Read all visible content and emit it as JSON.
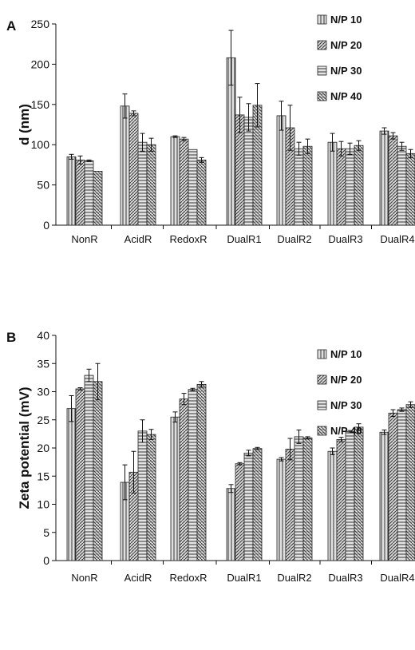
{
  "chart_data": [
    {
      "type": "bar",
      "panel_label": "A",
      "ylabel": "d (nm)",
      "ylim": [
        0,
        250
      ],
      "yticks": [
        0,
        50,
        100,
        150,
        200,
        250
      ],
      "categories": [
        "NonR",
        "AcidR",
        "RedoxR",
        "DualR1",
        "DualR2",
        "DualR3",
        "DualR4"
      ],
      "legend_position": "top-right",
      "series": [
        {
          "name": "N/P 10",
          "values": [
            85,
            148,
            110,
            208,
            136,
            103,
            117
          ],
          "errors": [
            3,
            15,
            1,
            34,
            18,
            11,
            4
          ]
        },
        {
          "name": "N/P 20",
          "values": [
            81,
            139,
            107,
            137,
            121,
            95,
            111
          ],
          "errors": [
            5,
            3,
            2,
            22,
            28,
            9,
            4
          ]
        },
        {
          "name": "N/P 30",
          "values": [
            80,
            103,
            94,
            134,
            95,
            95,
            98
          ],
          "errors": [
            1,
            11,
            0,
            17,
            8,
            7,
            5
          ]
        },
        {
          "name": "N/P 40",
          "values": [
            67,
            100,
            81,
            149,
            98,
            99,
            89
          ],
          "errors": [
            0,
            8,
            3,
            27,
            9,
            6,
            5
          ]
        }
      ]
    },
    {
      "type": "bar",
      "panel_label": "B",
      "ylabel": "Zeta potential (mV)",
      "ylim": [
        0,
        40
      ],
      "yticks": [
        0,
        5,
        10,
        15,
        20,
        25,
        30,
        35,
        40
      ],
      "categories": [
        "NonR",
        "AcidR",
        "RedoxR",
        "DualR1",
        "DualR2",
        "DualR3",
        "DualR4"
      ],
      "legend_position": "top-right",
      "series": [
        {
          "name": "N/P 10",
          "values": [
            27.0,
            13.9,
            25.5,
            12.8,
            18.0,
            19.4,
            22.8
          ],
          "errors": [
            2.3,
            3.1,
            0.9,
            0.7,
            0.3,
            0.6,
            0.4
          ]
        },
        {
          "name": "N/P 20",
          "values": [
            30.5,
            15.7,
            28.7,
            17.2,
            19.8,
            21.5,
            26.2
          ],
          "errors": [
            0.2,
            3.7,
            1.0,
            0.2,
            1.9,
            0.4,
            0.6
          ]
        },
        {
          "name": "N/P 30",
          "values": [
            32.9,
            23.0,
            30.4,
            19.1,
            22.0,
            22.9,
            26.8
          ],
          "errors": [
            1.1,
            2.0,
            0.2,
            0.5,
            1.2,
            0.2,
            0.3
          ]
        },
        {
          "name": "N/P 40",
          "values": [
            31.8,
            22.4,
            31.3,
            19.9,
            21.8,
            23.7,
            27.7
          ],
          "errors": [
            3.2,
            0.9,
            0.5,
            0.2,
            0.2,
            0.6,
            0.5
          ]
        }
      ]
    }
  ]
}
